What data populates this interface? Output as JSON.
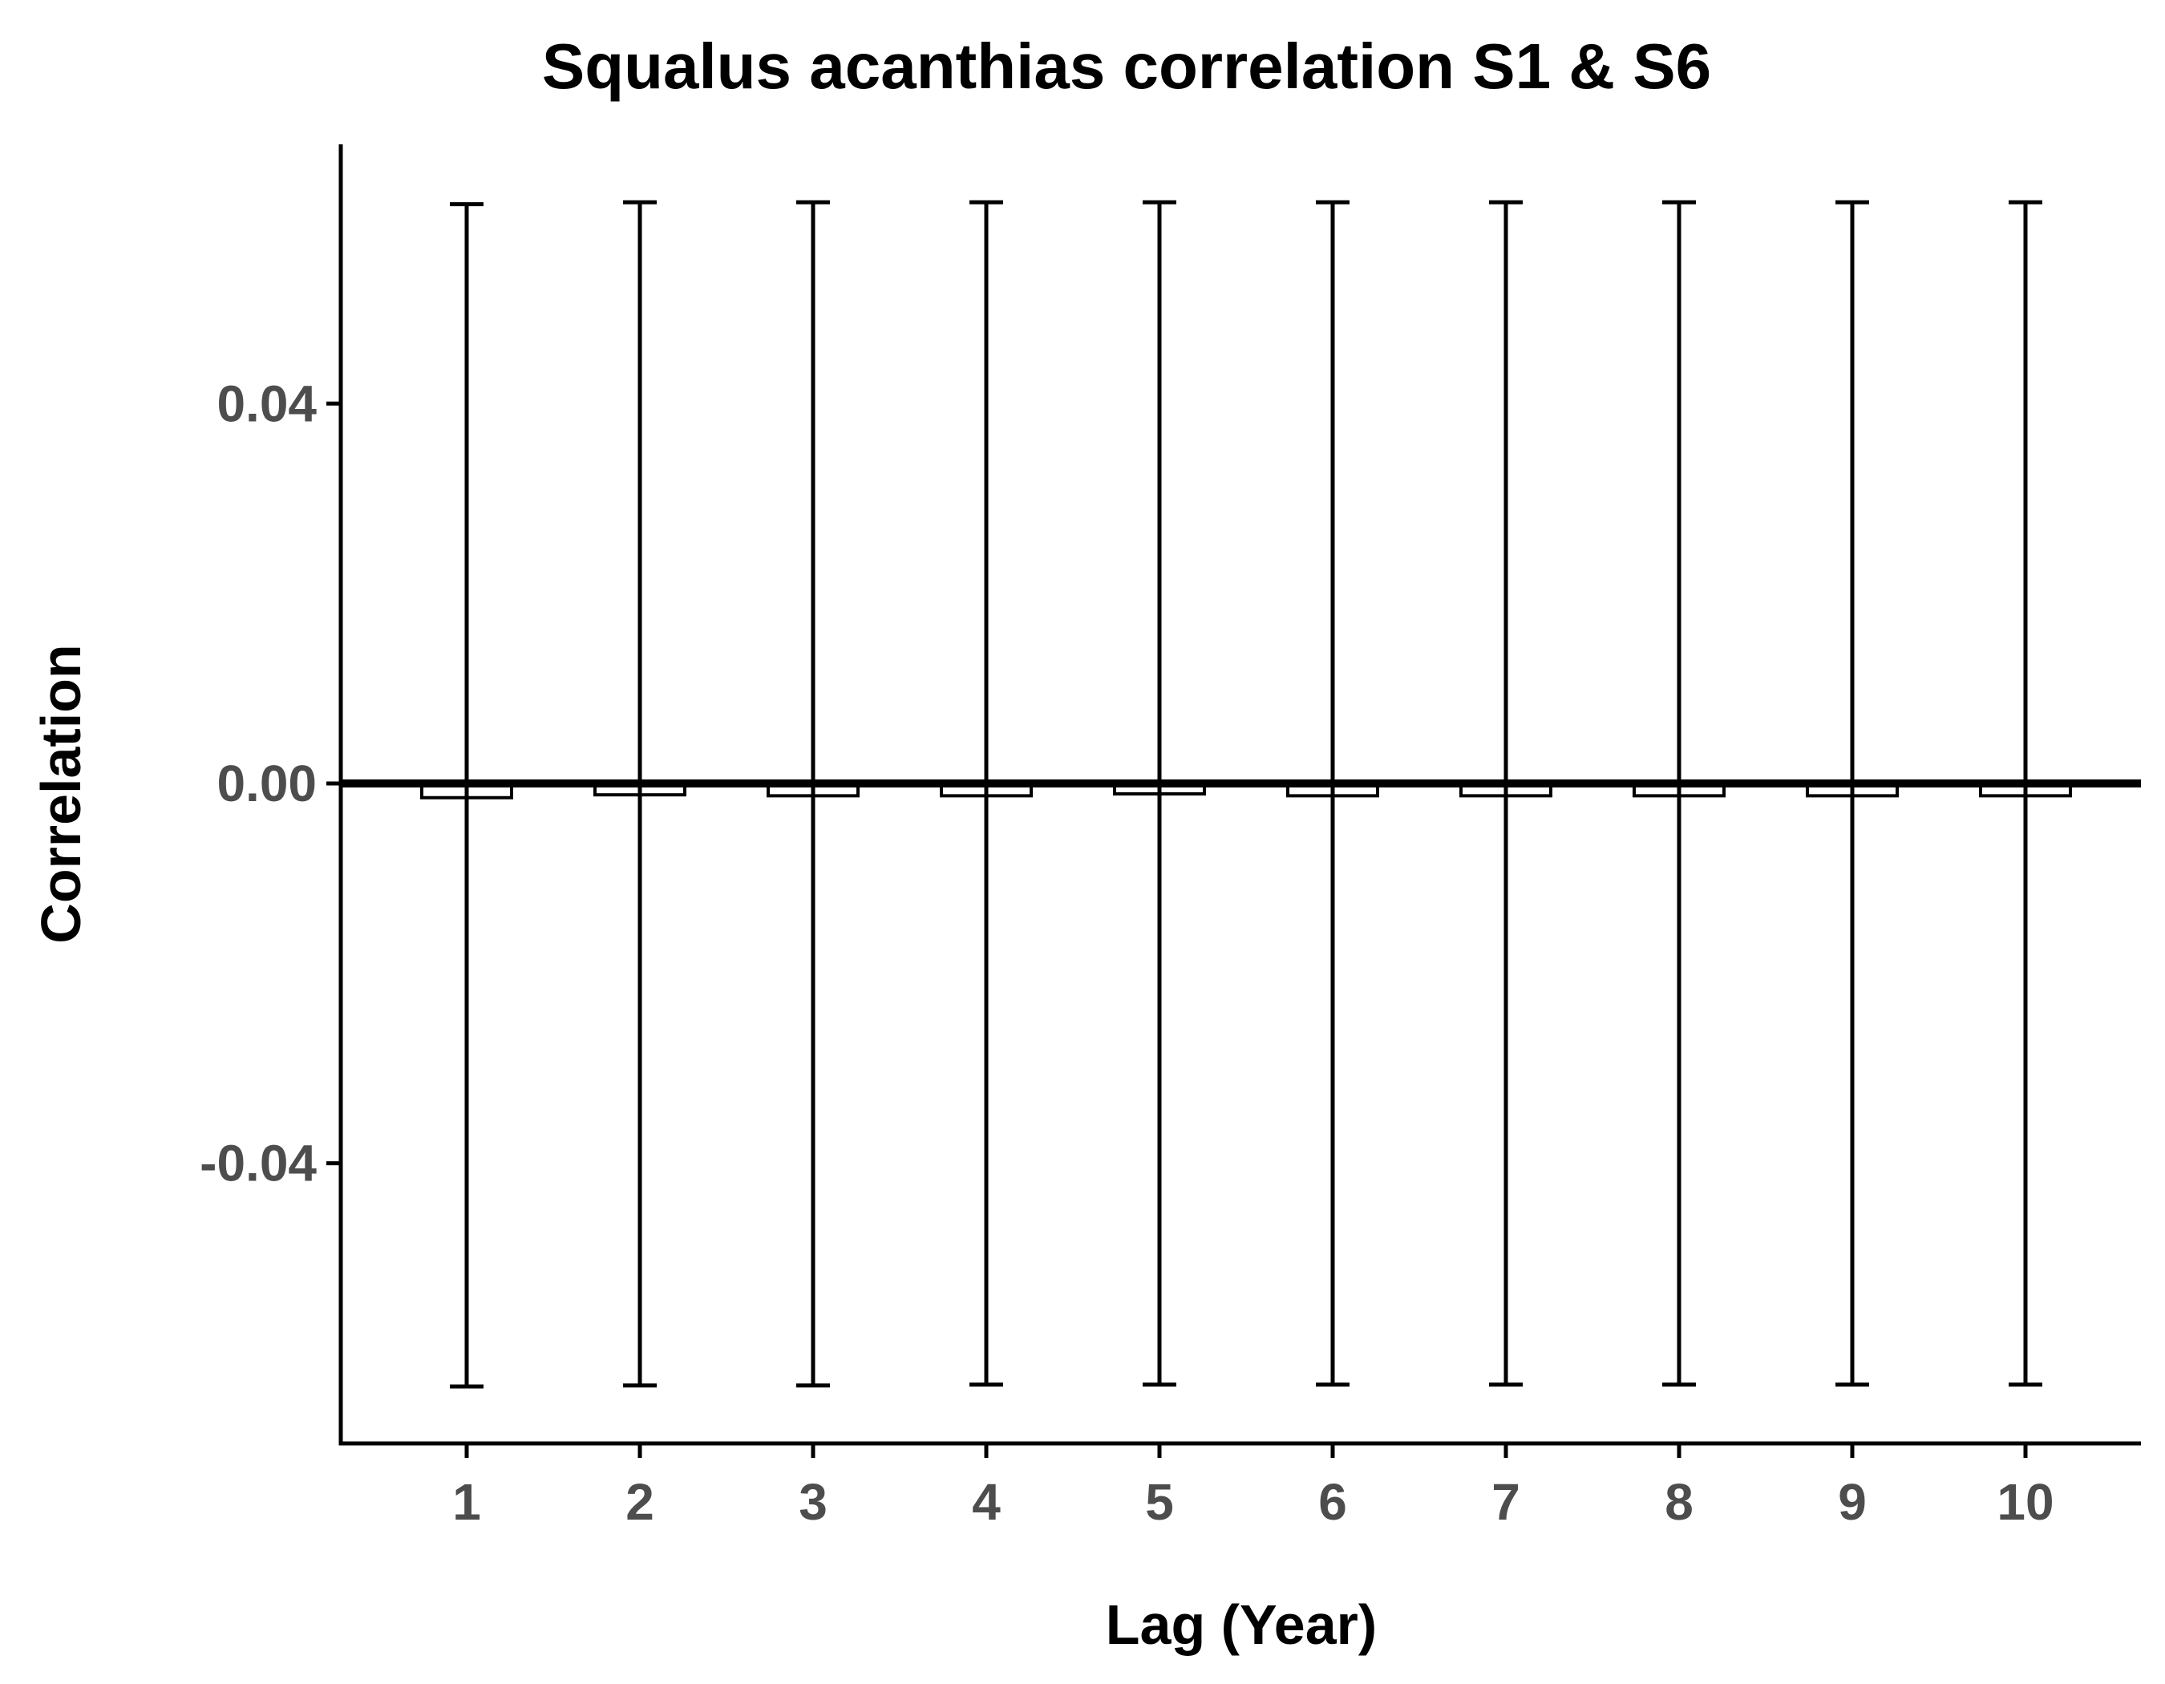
{
  "chart_data": {
    "type": "bar",
    "title": "Squalus acanthias correlation S1 & S6",
    "xlabel": "Lag (Year)",
    "ylabel": "Correlation",
    "categories": [
      "1",
      "2",
      "3",
      "4",
      "5",
      "6",
      "7",
      "8",
      "9",
      "10"
    ],
    "values": [
      -0.0015,
      -0.0012,
      -0.0013,
      -0.0013,
      -0.0011,
      -0.0013,
      -0.0013,
      -0.0013,
      -0.0013,
      -0.0013
    ],
    "error_upper": [
      0.061,
      0.0612,
      0.0612,
      0.0612,
      0.0612,
      0.0612,
      0.0612,
      0.0612,
      0.0612,
      0.0612
    ],
    "error_lower": [
      -0.0635,
      -0.0634,
      -0.0634,
      -0.0633,
      -0.0633,
      -0.0633,
      -0.0633,
      -0.0633,
      -0.0633,
      -0.0633
    ],
    "yticks": [
      "-0.04",
      "0.00",
      "0.04"
    ],
    "ylim": [
      -0.0695,
      0.0673
    ],
    "reference_line": 0,
    "grid": false,
    "legend": "none",
    "colors": {
      "bar_fill": "#ffffff",
      "bar_stroke": "#000000",
      "axis": "#000000",
      "tick_label": "#4d4d4d"
    }
  }
}
